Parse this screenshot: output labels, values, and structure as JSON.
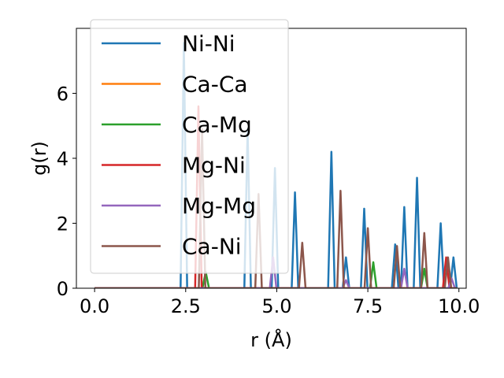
{
  "chart_data": {
    "type": "line",
    "xlabel": "r (Å)",
    "ylabel": "g(r)",
    "xlim": [
      -0.5,
      10.2
    ],
    "ylim": [
      0,
      8.0
    ],
    "xticks": [
      0.0,
      2.5,
      5.0,
      7.5,
      10.0
    ],
    "xtick_labels": [
      "0.0",
      "2.5",
      "5.0",
      "7.5",
      "10.0"
    ],
    "yticks": [
      0,
      2,
      4,
      6
    ],
    "ytick_labels": [
      "0",
      "2",
      "4",
      "6"
    ],
    "grid": false,
    "legend_position": "top-left",
    "series": [
      {
        "name": "Ni-Ni",
        "color": "#1f77b4",
        "peaks": [
          [
            2.45,
            7.55
          ],
          [
            4.2,
            4.9
          ],
          [
            4.95,
            3.7
          ],
          [
            5.5,
            2.95
          ],
          [
            6.5,
            4.2
          ],
          [
            6.9,
            0.95
          ],
          [
            7.4,
            2.45
          ],
          [
            8.25,
            1.35
          ],
          [
            8.5,
            2.5
          ],
          [
            8.85,
            3.4
          ],
          [
            9.5,
            2.0
          ],
          [
            9.85,
            0.95
          ]
        ]
      },
      {
        "name": "Ca-Ca",
        "color": "#ff7f0e",
        "peaks": []
      },
      {
        "name": "Ca-Mg",
        "color": "#2ca02c",
        "peaks": [
          [
            3.05,
            0.5
          ],
          [
            7.65,
            0.8
          ],
          [
            9.05,
            0.6
          ]
        ]
      },
      {
        "name": "Mg-Ni",
        "color": "#d62728",
        "peaks": [
          [
            2.85,
            5.6
          ],
          [
            9.65,
            0.95
          ]
        ]
      },
      {
        "name": "Mg-Mg",
        "color": "#9467bd",
        "peaks": [
          [
            4.9,
            0.95
          ],
          [
            6.9,
            0.25
          ],
          [
            8.5,
            0.6
          ],
          [
            9.8,
            0.3
          ]
        ]
      },
      {
        "name": "Ca-Ni",
        "color": "#8c564b",
        "peaks": [
          [
            2.95,
            4.9
          ],
          [
            4.5,
            2.9
          ],
          [
            5.7,
            1.4
          ],
          [
            6.75,
            3.0
          ],
          [
            7.5,
            1.85
          ],
          [
            8.3,
            1.3
          ],
          [
            9.05,
            1.7
          ],
          [
            9.7,
            0.95
          ]
        ]
      }
    ]
  }
}
